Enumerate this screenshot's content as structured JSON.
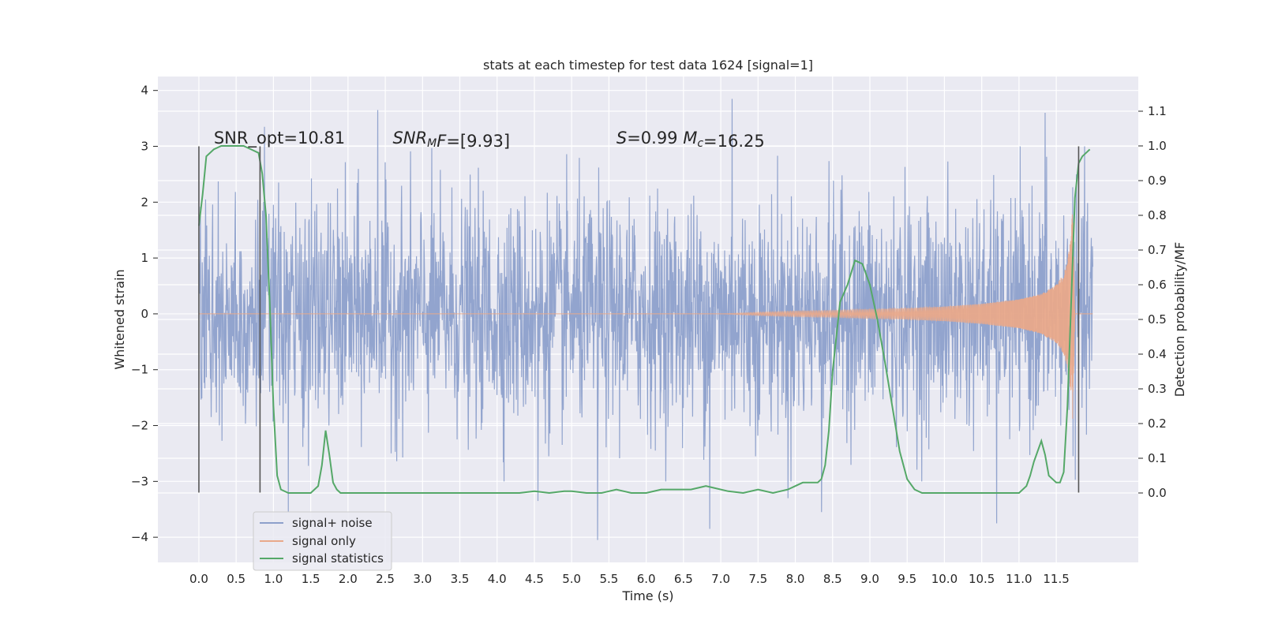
{
  "chart_data": {
    "type": "line",
    "title": "stats at each timestep for test data 1624 [signal=1]",
    "xlabel": "Time (s)",
    "ylabel_left": "Whitened strain",
    "ylabel_right": "Detection probability/MF",
    "xlim": [
      -0.55,
      12.6
    ],
    "ylim_left": [
      -4.45,
      4.25
    ],
    "ylim_right": [
      -0.2,
      1.2
    ],
    "grid": true,
    "legend_position": "lower-left",
    "x_ticks": [
      0.0,
      0.5,
      1.0,
      1.5,
      2.0,
      2.5,
      3.0,
      3.5,
      4.0,
      4.5,
      5.0,
      5.5,
      6.0,
      6.5,
      7.0,
      7.5,
      8.0,
      8.5,
      9.0,
      9.5,
      10.0,
      10.5,
      11.0,
      11.5
    ],
    "x_tick_labels": [
      "0.0",
      "0.5",
      "1.0",
      "1.5",
      "2.0",
      "2.5",
      "3.0",
      "3.5",
      "4.0",
      "4.5",
      "5.0",
      "5.5",
      "6.0",
      "6.5",
      "7.0",
      "7.5",
      "8.0",
      "8.5",
      "9.0",
      "9.5",
      "10.0",
      "10.5",
      "11.0",
      "11.5"
    ],
    "y_left_ticks": [
      4,
      3,
      2,
      1,
      0,
      -1,
      -2,
      -3,
      -4
    ],
    "y_left_tick_labels": [
      "4",
      "3",
      "2",
      "1",
      "0",
      "−1",
      "−2",
      "−3",
      "−4"
    ],
    "y_right_ticks": [
      1.1,
      1.0,
      0.9,
      0.8,
      0.7,
      0.6,
      0.5,
      0.4,
      0.3,
      0.2,
      0.1,
      0.0
    ],
    "y_right_tick_labels": [
      "1.1",
      "1.0",
      "0.9",
      "0.8",
      "0.7",
      "0.6",
      "0.5",
      "0.4",
      "0.3",
      "0.2",
      "0.1",
      "0.0"
    ],
    "annotations": [
      {
        "x": 0.2,
        "y_left": 3.15,
        "parts": [
          {
            "text": "SNR_opt=10.81",
            "italic": false
          }
        ]
      },
      {
        "x": 2.6,
        "y_left": 3.15,
        "parts": [
          {
            "text": "SNR",
            "italic": true
          },
          {
            "text": "M",
            "italic": true,
            "sub": true
          },
          {
            "text": "F",
            "italic": true
          },
          {
            "text": "=[9.93]",
            "italic": false
          }
        ]
      },
      {
        "x": 5.6,
        "y_left": 3.15,
        "parts": [
          {
            "text": "S",
            "italic": true
          },
          {
            "text": "=0.99   ",
            "italic": false
          },
          {
            "text": "M",
            "italic": true
          },
          {
            "text": "c",
            "italic": true,
            "sub": true
          },
          {
            "text": "=16.25",
            "italic": false
          }
        ]
      }
    ],
    "vlines": [
      {
        "x": 0.0,
        "y_range": [
          -3.2,
          3.0
        ]
      },
      {
        "x": 0.82,
        "y_range": [
          -3.2,
          3.0
        ]
      },
      {
        "x": 11.8,
        "y_range": [
          -3.2,
          3.0
        ]
      }
    ],
    "series": [
      {
        "name": "signal+ noise",
        "color": "#8da0cb",
        "x_range": [
          0.0,
          11.99
        ],
        "envelope": "approximately Gaussian noise, std about 1, peaks between -4.1 and 3.9",
        "notable_peaks": [
          {
            "x": 2.4,
            "y": 3.65
          },
          {
            "x": 7.15,
            "y": 3.85
          },
          {
            "x": 11.35,
            "y": 3.6
          },
          {
            "x": 0.88,
            "y": 3.35
          },
          {
            "x": 5.35,
            "y": -4.05
          },
          {
            "x": 1.2,
            "y": -3.55
          },
          {
            "x": 6.85,
            "y": -3.85
          },
          {
            "x": 10.7,
            "y": -3.75
          },
          {
            "x": 4.55,
            "y": -3.35
          },
          {
            "x": 8.35,
            "y": -3.55
          },
          {
            "x": 7.9,
            "y": -3.3
          }
        ]
      },
      {
        "name": "signal only",
        "color": "#e9a98a",
        "x": [
          0.0,
          7.0,
          7.5,
          8.0,
          8.5,
          9.0,
          9.5,
          10.0,
          10.5,
          11.0,
          11.3,
          11.5,
          11.6,
          11.65,
          11.7,
          11.72,
          11.75,
          11.99
        ],
        "amplitude": [
          0.0,
          0.0,
          0.03,
          0.05,
          0.06,
          0.08,
          0.1,
          0.13,
          0.18,
          0.26,
          0.36,
          0.52,
          0.72,
          0.95,
          1.45,
          1.95,
          0.0,
          0.0
        ]
      },
      {
        "name": "signal statistics",
        "color": "#55a868",
        "axis": "right",
        "x": [
          0.0,
          0.05,
          0.1,
          0.2,
          0.3,
          0.4,
          0.5,
          0.6,
          0.7,
          0.8,
          0.85,
          0.9,
          0.95,
          1.0,
          1.05,
          1.1,
          1.2,
          1.3,
          1.5,
          1.6,
          1.65,
          1.7,
          1.75,
          1.8,
          1.85,
          1.9,
          2.0,
          2.5,
          3.0,
          3.5,
          4.0,
          4.3,
          4.5,
          4.7,
          4.9,
          5.0,
          5.2,
          5.4,
          5.5,
          5.6,
          5.7,
          5.8,
          6.0,
          6.2,
          6.4,
          6.6,
          6.8,
          6.9,
          7.1,
          7.3,
          7.5,
          7.7,
          7.9,
          8.0,
          8.1,
          8.2,
          8.3,
          8.35,
          8.4,
          8.45,
          8.5,
          8.6,
          8.7,
          8.8,
          8.9,
          9.0,
          9.1,
          9.2,
          9.3,
          9.4,
          9.5,
          9.6,
          9.7,
          10.0,
          10.5,
          11.0,
          11.1,
          11.15,
          11.2,
          11.25,
          11.3,
          11.35,
          11.4,
          11.5,
          11.55,
          11.6,
          11.65,
          11.7,
          11.75,
          11.8,
          11.85,
          11.9,
          11.95
        ],
        "values": [
          0.77,
          0.86,
          0.97,
          0.99,
          1.0,
          1.0,
          1.0,
          1.0,
          0.99,
          0.98,
          0.92,
          0.8,
          0.55,
          0.25,
          0.05,
          0.01,
          0.0,
          0.0,
          0.0,
          0.02,
          0.08,
          0.18,
          0.11,
          0.03,
          0.01,
          0.0,
          0.0,
          0.0,
          0.0,
          0.0,
          0.0,
          0.0,
          0.005,
          0.0,
          0.005,
          0.005,
          0.0,
          0.0,
          0.005,
          0.01,
          0.005,
          0.0,
          0.0,
          0.01,
          0.01,
          0.01,
          0.02,
          0.015,
          0.005,
          0.0,
          0.01,
          0.0,
          0.01,
          0.02,
          0.03,
          0.03,
          0.03,
          0.04,
          0.08,
          0.18,
          0.35,
          0.55,
          0.6,
          0.67,
          0.66,
          0.6,
          0.5,
          0.38,
          0.25,
          0.12,
          0.04,
          0.01,
          0.0,
          0.0,
          0.0,
          0.0,
          0.02,
          0.05,
          0.09,
          0.12,
          0.15,
          0.11,
          0.05,
          0.03,
          0.03,
          0.06,
          0.25,
          0.55,
          0.85,
          0.95,
          0.97,
          0.98,
          0.99
        ]
      }
    ]
  }
}
